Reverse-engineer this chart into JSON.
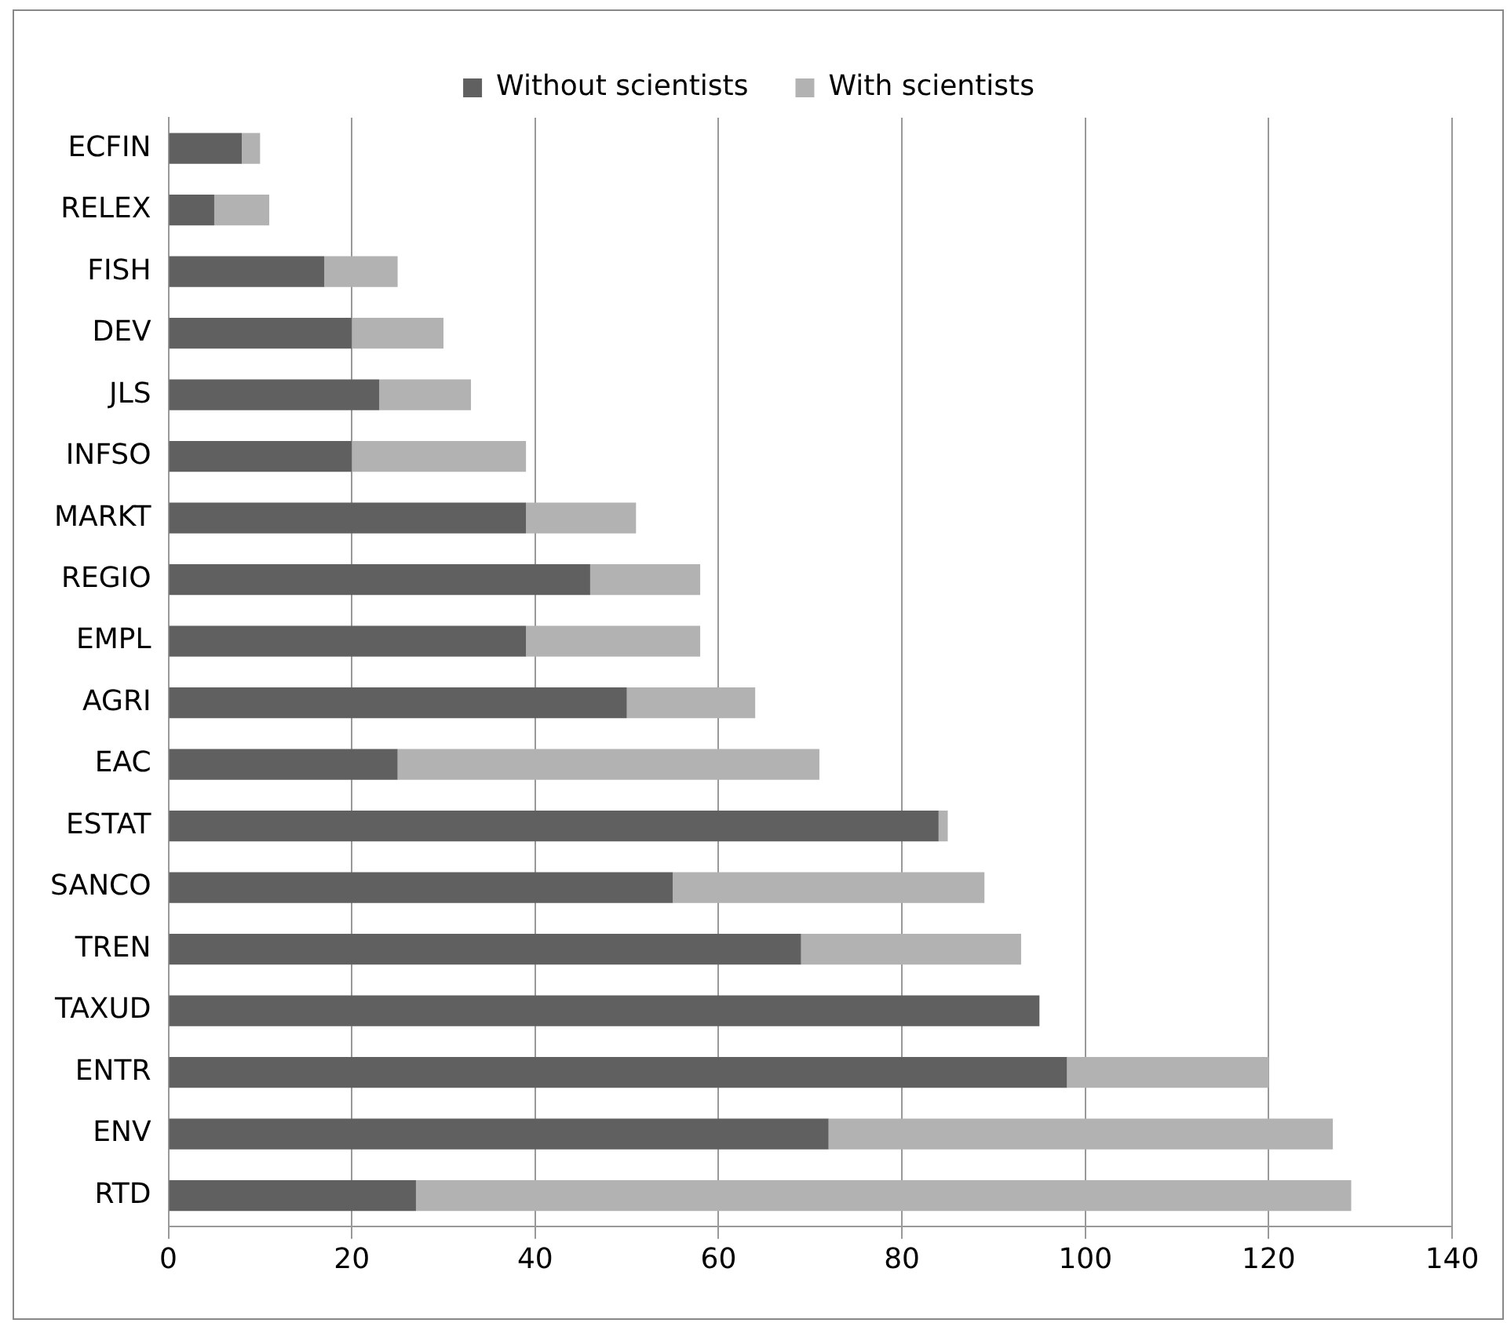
{
  "chart_data": {
    "type": "bar",
    "orientation": "horizontal",
    "stacked": true,
    "categories": [
      "ECFIN",
      "RELEX",
      "FISH",
      "DEV",
      "JLS",
      "INFSO",
      "MARKT",
      "REGIO",
      "EMPL",
      "AGRI",
      "EAC",
      "ESTAT",
      "SANCO",
      "TREN",
      "TAXUD",
      "ENTR",
      "ENV",
      "RTD"
    ],
    "series": [
      {
        "name": "Without scientists",
        "color": "#606060",
        "values": [
          8,
          5,
          17,
          20,
          23,
          20,
          39,
          46,
          39,
          50,
          25,
          84,
          55,
          69,
          95,
          98,
          72,
          27
        ]
      },
      {
        "name": "With scientists",
        "color": "#b2b2b2",
        "values": [
          2,
          6,
          8,
          10,
          10,
          19,
          12,
          12,
          19,
          14,
          46,
          1,
          34,
          24,
          0,
          22,
          55,
          102
        ]
      }
    ],
    "xlim": [
      0,
      140
    ],
    "xticks": [
      0,
      20,
      40,
      60,
      80,
      100,
      120,
      140
    ],
    "grid": "x",
    "legend": "top"
  }
}
